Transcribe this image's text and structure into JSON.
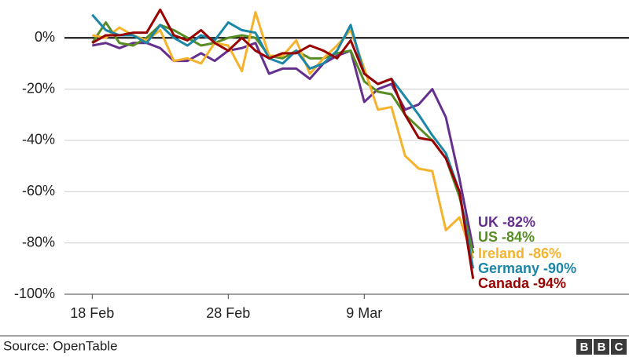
{
  "chart_data": {
    "type": "line",
    "categories": [
      null,
      "18 Feb",
      null,
      null,
      null,
      null,
      null,
      null,
      null,
      null,
      null,
      "28 Feb",
      null,
      null,
      null,
      null,
      null,
      null,
      null,
      null,
      null,
      "9 Mar",
      null,
      null,
      null,
      null,
      null,
      null,
      null,
      null
    ],
    "ylim": [
      -100,
      12
    ],
    "yticks": [
      {
        "value": 0,
        "label": "0%"
      },
      {
        "value": -20,
        "label": "-20%"
      },
      {
        "value": -40,
        "label": "-40%"
      },
      {
        "value": -60,
        "label": "-60%"
      },
      {
        "value": -80,
        "label": "-80%"
      },
      {
        "value": -100,
        "label": "-100%"
      }
    ],
    "grid": true,
    "series": [
      {
        "name": "UK",
        "color": "#652f8e",
        "values": [
          null,
          -3,
          -2,
          -4,
          -2,
          -2,
          -4,
          -9,
          -9,
          -6,
          -9,
          -5,
          -4,
          -2,
          -14,
          -12,
          -12,
          -16,
          -10,
          -7,
          -5,
          -25,
          -20,
          -18,
          -28,
          -26,
          -20,
          -31,
          -55,
          -82
        ],
        "value_labels": [
          null,
          null,
          null,
          null,
          null,
          null,
          null,
          null,
          null,
          null,
          null,
          null,
          null,
          null,
          null,
          null,
          null,
          null,
          null,
          null,
          null,
          null,
          null,
          null,
          null,
          null,
          null,
          null,
          null,
          "-82%"
        ]
      },
      {
        "name": "US",
        "color": "#588d24",
        "values": [
          null,
          -2,
          6,
          -2,
          -3,
          0,
          5,
          3,
          0,
          -3,
          -2,
          0,
          1,
          0,
          -7,
          -8,
          -5,
          -8,
          -8,
          -6,
          -5,
          -17,
          -21,
          -22,
          -30,
          -35,
          -40,
          -47,
          -62,
          -84
        ],
        "value_labels": [
          null,
          null,
          null,
          null,
          null,
          null,
          null,
          null,
          null,
          null,
          null,
          null,
          null,
          null,
          null,
          null,
          null,
          null,
          null,
          null,
          null,
          null,
          null,
          null,
          null,
          null,
          null,
          null,
          null,
          "-84%"
        ]
      },
      {
        "name": "Ireland",
        "color": "#f5b22c",
        "values": [
          null,
          1,
          0,
          4,
          1,
          -1,
          3,
          -9,
          -8,
          -10,
          -2,
          -3,
          -13,
          10,
          -7,
          -7,
          -1,
          -14,
          -8,
          -3,
          3,
          -12,
          -28,
          -27,
          -46,
          -51,
          -52,
          -75,
          -70,
          -86
        ],
        "value_labels": [
          null,
          null,
          null,
          null,
          null,
          null,
          null,
          null,
          null,
          null,
          null,
          null,
          null,
          null,
          null,
          null,
          null,
          null,
          null,
          null,
          null,
          null,
          null,
          null,
          null,
          null,
          null,
          null,
          null,
          "-86%"
        ]
      },
      {
        "name": "Germany",
        "color": "#1b86a6",
        "values": [
          null,
          9,
          3,
          1,
          1,
          -2,
          5,
          0,
          -3,
          1,
          -1,
          6,
          3,
          2,
          -8,
          -10,
          -5,
          -12,
          -10,
          -5,
          5,
          -14,
          -18,
          -16,
          -23,
          -30,
          -38,
          -45,
          -60,
          -90
        ],
        "value_labels": [
          null,
          null,
          null,
          null,
          null,
          null,
          null,
          null,
          null,
          null,
          null,
          null,
          null,
          null,
          null,
          null,
          null,
          null,
          null,
          null,
          null,
          null,
          null,
          null,
          null,
          null,
          null,
          null,
          null,
          "-90%"
        ]
      },
      {
        "name": "Canada",
        "color": "#990000",
        "values": [
          null,
          -2,
          1,
          1,
          2,
          2,
          11,
          1,
          -1,
          3,
          -2,
          -5,
          0,
          -5,
          -8,
          -6,
          -6,
          -3,
          -5,
          -8,
          -1,
          -14,
          -18,
          -16,
          -30,
          -39,
          -40,
          -47,
          -60,
          -94
        ],
        "value_labels": [
          null,
          null,
          null,
          null,
          null,
          null,
          null,
          null,
          null,
          null,
          null,
          null,
          null,
          null,
          null,
          null,
          null,
          null,
          null,
          null,
          null,
          null,
          null,
          null,
          null,
          null,
          null,
          null,
          null,
          "-94%"
        ]
      }
    ],
    "source": "Source: OpenTable",
    "logo": [
      "B",
      "B",
      "C"
    ]
  }
}
